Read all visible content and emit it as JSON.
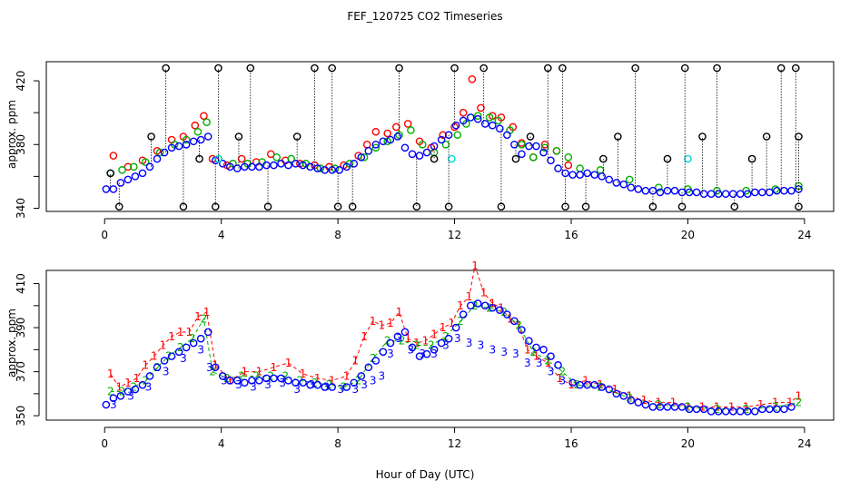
{
  "figure": {
    "title": "FEF_120725  CO2 Timeseries",
    "xlabel": "Hour of Day (UTC)"
  },
  "chart_data": [
    {
      "type": "scatter",
      "ylabel": "approx. ppm",
      "xlim": [
        -2,
        25
      ],
      "ylim": [
        338,
        432
      ],
      "xticks": [
        0,
        4,
        8,
        12,
        16,
        20,
        24
      ],
      "yticks": [
        340,
        380,
        420
      ],
      "yticks_minor_unlabeled": [
        360,
        400
      ],
      "marker": "circle",
      "series": [
        {
          "name": "red",
          "color": "#ff0000",
          "x": [
            0.3,
            0.8,
            1.3,
            1.8,
            2.3,
            2.7,
            3.1,
            3.4,
            3.7,
            4.2,
            4.7,
            5.2,
            5.7,
            6.2,
            6.7,
            7.2,
            7.7,
            8.2,
            8.7,
            9.0,
            9.3,
            9.7,
            10.0,
            10.4,
            10.8,
            11.2,
            11.6,
            12.0,
            12.3,
            12.6,
            12.9,
            13.3,
            13.6,
            14.0,
            14.3,
            14.7,
            15.1,
            15.5,
            15.9
          ],
          "y": [
            373,
            366,
            370,
            376,
            383,
            385,
            392,
            398,
            371,
            367,
            371,
            369,
            374,
            370,
            368,
            367,
            366,
            367,
            373,
            380,
            388,
            387,
            391,
            393,
            382,
            378,
            386,
            391,
            400,
            421,
            403,
            398,
            397,
            391,
            381,
            372,
            380,
            376,
            367
          ]
        },
        {
          "name": "green",
          "color": "#00b000",
          "x": [
            0.2,
            0.6,
            1.0,
            1.4,
            1.9,
            2.4,
            2.8,
            3.2,
            3.5,
            3.9,
            4.4,
            4.9,
            5.4,
            5.9,
            6.4,
            6.9,
            7.4,
            7.9,
            8.4,
            8.9,
            9.3,
            9.7,
            10.1,
            10.5,
            10.9,
            11.3,
            11.7,
            12.1,
            12.4,
            12.8,
            13.2,
            13.5,
            13.9,
            14.3,
            14.7,
            15.1,
            15.5,
            15.9,
            16.3,
            17.0,
            18.0,
            19.0,
            20.0,
            21.0,
            22.0,
            23.0,
            23.8
          ],
          "y": [
            362,
            364,
            366,
            369,
            375,
            380,
            383,
            388,
            394,
            371,
            368,
            368,
            369,
            372,
            371,
            368,
            365,
            365,
            368,
            372,
            378,
            382,
            386,
            389,
            380,
            375,
            380,
            386,
            393,
            398,
            397,
            395,
            389,
            380,
            372,
            378,
            376,
            372,
            365,
            364,
            358,
            353,
            352,
            351,
            351,
            352,
            354
          ]
        },
        {
          "name": "blue",
          "color": "#0000ff",
          "x": [
            0.05,
            0.3,
            0.55,
            0.8,
            1.05,
            1.3,
            1.55,
            1.8,
            2.05,
            2.3,
            2.55,
            2.8,
            3.05,
            3.3,
            3.55,
            3.8,
            4.05,
            4.3,
            4.55,
            4.8,
            5.05,
            5.3,
            5.55,
            5.8,
            6.05,
            6.3,
            6.55,
            6.8,
            7.05,
            7.3,
            7.55,
            7.8,
            8.05,
            8.3,
            8.55,
            8.8,
            9.05,
            9.3,
            9.55,
            9.8,
            10.05,
            10.3,
            10.55,
            10.8,
            11.05,
            11.3,
            11.55,
            11.8,
            12.05,
            12.3,
            12.55,
            12.8,
            13.05,
            13.3,
            13.55,
            13.8,
            14.05,
            14.3,
            14.55,
            14.8,
            15.05,
            15.3,
            15.55,
            15.8,
            16.05,
            16.3,
            16.55,
            16.8,
            17.05,
            17.3,
            17.55,
            17.8,
            18.05,
            18.3,
            18.55,
            18.8,
            19.05,
            19.3,
            19.55,
            19.8,
            20.05,
            20.3,
            20.55,
            20.8,
            21.05,
            21.3,
            21.55,
            21.8,
            22.05,
            22.3,
            22.55,
            22.8,
            23.05,
            23.3,
            23.55,
            23.8
          ],
          "y": [
            352,
            352,
            356,
            358,
            360,
            362,
            366,
            371,
            375,
            378,
            379,
            380,
            382,
            383,
            385,
            370,
            368,
            366,
            365,
            366,
            366,
            366,
            367,
            367,
            368,
            367,
            368,
            367,
            366,
            365,
            364,
            364,
            364,
            366,
            368,
            372,
            376,
            380,
            382,
            383,
            385,
            378,
            374,
            373,
            375,
            379,
            383,
            386,
            392,
            395,
            397,
            396,
            393,
            392,
            390,
            386,
            380,
            374,
            379,
            379,
            375,
            370,
            365,
            362,
            361,
            361,
            362,
            361,
            360,
            358,
            356,
            355,
            353,
            352,
            351,
            351,
            350,
            351,
            351,
            350,
            350,
            350,
            349,
            349,
            349,
            349,
            349,
            349,
            349,
            350,
            350,
            350,
            351,
            351,
            351,
            352
          ]
        },
        {
          "name": "cyan",
          "color": "#00d8d8",
          "x": [
            3.9,
            11.9,
            20.0
          ],
          "y": [
            371,
            371,
            371
          ]
        },
        {
          "name": "black",
          "color": "#000000",
          "x": [
            0.2,
            0.5,
            1.6,
            2.1,
            2.7,
            3.25,
            3.8,
            3.9,
            4.6,
            5.0,
            5.6,
            6.6,
            7.2,
            7.8,
            8.0,
            8.5,
            10.1,
            10.7,
            11.3,
            11.8,
            12.0,
            13.0,
            13.6,
            14.1,
            14.6,
            15.2,
            15.7,
            15.8,
            16.5,
            17.1,
            17.6,
            18.2,
            18.8,
            19.3,
            19.8,
            19.9,
            20.5,
            21.0,
            21.6,
            22.2,
            22.7,
            23.2,
            23.7,
            23.8,
            23.8
          ],
          "y": [
            362,
            341,
            385,
            428,
            341,
            371,
            341,
            428,
            385,
            428,
            341,
            385,
            428,
            428,
            341,
            341,
            428,
            341,
            371,
            341,
            428,
            428,
            341,
            371,
            385,
            428,
            428,
            341,
            341,
            371,
            385,
            428,
            341,
            371,
            341,
            428,
            385,
            428,
            341,
            371,
            385,
            428,
            428,
            341,
            385
          ]
        }
      ]
    },
    {
      "type": "scatter",
      "ylabel": "approx. ppm",
      "xlim": [
        -2,
        25
      ],
      "ylim": [
        348,
        416
      ],
      "xticks": [
        0,
        4,
        8,
        12,
        16,
        20,
        24
      ],
      "yticks": [
        350,
        370,
        390,
        410
      ],
      "yticks_minor_unlabeled": [
        360,
        380,
        400
      ],
      "series": [
        {
          "name": "1",
          "color": "#ff0000",
          "marker": "1",
          "x": [
            0.2,
            0.5,
            0.8,
            1.1,
            1.4,
            1.7,
            2.0,
            2.3,
            2.6,
            2.9,
            3.2,
            3.5,
            3.8,
            4.3,
            4.8,
            5.3,
            5.8,
            6.3,
            6.8,
            7.3,
            7.8,
            8.3,
            8.6,
            8.9,
            9.2,
            9.5,
            9.8,
            10.1,
            10.4,
            10.7,
            11.0,
            11.3,
            11.6,
            11.9,
            12.2,
            12.5,
            12.7,
            13.0,
            13.3,
            13.6,
            13.9,
            14.2,
            14.5,
            14.8,
            15.2,
            15.6,
            16.0,
            16.5,
            17.0,
            17.5,
            18.0,
            18.5,
            19.0,
            19.5,
            20.0,
            20.5,
            21.0,
            21.5,
            22.0,
            22.5,
            23.0,
            23.5,
            23.8
          ],
          "y": [
            369,
            363,
            365,
            367,
            373,
            377,
            382,
            386,
            388,
            388,
            395,
            397,
            373,
            366,
            370,
            370,
            372,
            374,
            369,
            367,
            366,
            368,
            375,
            386,
            393,
            391,
            392,
            397,
            385,
            383,
            384,
            387,
            390,
            392,
            400,
            404,
            418,
            406,
            401,
            399,
            394,
            391,
            380,
            377,
            374,
            367,
            364,
            366,
            364,
            362,
            359,
            357,
            356,
            356,
            354,
            354,
            354,
            354,
            354,
            355,
            356,
            356,
            359
          ]
        },
        {
          "name": "2",
          "color": "#00b000",
          "marker": "2",
          "x": [
            0.2,
            0.6,
            1.0,
            1.4,
            1.8,
            2.2,
            2.6,
            3.0,
            3.4,
            3.7,
            4.2,
            4.7,
            5.2,
            5.7,
            6.2,
            6.7,
            7.2,
            7.7,
            8.2,
            8.7,
            9.2,
            9.7,
            10.2,
            10.7,
            11.2,
            11.7,
            12.2,
            12.7,
            13.2,
            13.7,
            14.2,
            14.7,
            15.2,
            15.7,
            16.2,
            17.0,
            18.0,
            19.0,
            20.0,
            21.0,
            22.0,
            23.0,
            23.8
          ],
          "y": [
            361,
            361,
            363,
            366,
            372,
            377,
            381,
            385,
            394,
            370,
            367,
            368,
            368,
            368,
            368,
            366,
            365,
            364,
            363,
            366,
            376,
            384,
            384,
            382,
            382,
            386,
            393,
            400,
            399,
            397,
            391,
            379,
            375,
            370,
            364,
            363,
            358,
            355,
            354,
            353,
            353,
            354,
            356
          ]
        },
        {
          "name": "3",
          "color": "#0000ff",
          "marker": "3",
          "x": [
            0.3,
            0.9,
            1.5,
            2.1,
            2.7,
            3.3,
            3.6,
            4.1,
            4.6,
            5.1,
            5.6,
            6.1,
            6.6,
            7.1,
            7.6,
            8.1,
            8.6,
            8.9,
            9.2,
            9.5,
            9.8,
            10.1,
            10.5,
            10.9,
            11.3,
            11.7,
            12.1,
            12.5,
            12.9,
            13.3,
            13.7,
            14.1,
            14.5,
            14.9,
            15.3,
            15.7
          ],
          "y": [
            355,
            359,
            363,
            370,
            376,
            380,
            372,
            366,
            364,
            363,
            364,
            365,
            362,
            364,
            363,
            362,
            362,
            364,
            366,
            368,
            378,
            385,
            380,
            378,
            378,
            382,
            385,
            383,
            382,
            380,
            379,
            378,
            374,
            374,
            370,
            366
          ]
        },
        {
          "name": "o-blue",
          "color": "#0000ff",
          "marker": "circle",
          "x": [
            0.05,
            0.3,
            0.55,
            0.8,
            1.05,
            1.3,
            1.55,
            1.8,
            2.05,
            2.3,
            2.55,
            2.8,
            3.05,
            3.3,
            3.55,
            3.8,
            4.05,
            4.3,
            4.55,
            4.8,
            5.05,
            5.3,
            5.55,
            5.8,
            6.05,
            6.3,
            6.55,
            6.8,
            7.05,
            7.3,
            7.55,
            7.8,
            8.3,
            8.55,
            8.8,
            9.05,
            9.3,
            9.55,
            9.8,
            10.05,
            10.3,
            10.55,
            10.8,
            11.05,
            11.3,
            11.55,
            11.8,
            12.05,
            12.3,
            12.55,
            12.8,
            13.05,
            13.3,
            13.55,
            13.8,
            14.05,
            14.3,
            14.55,
            14.8,
            15.05,
            15.3,
            15.55,
            16.05,
            16.3,
            16.55,
            16.8,
            17.05,
            17.3,
            17.55,
            17.8,
            18.05,
            18.3,
            18.55,
            18.8,
            19.05,
            19.3,
            19.55,
            19.8,
            20.05,
            20.3,
            20.55,
            20.8,
            21.05,
            21.3,
            21.55,
            21.8,
            22.05,
            22.3,
            22.55,
            22.8,
            23.05,
            23.3,
            23.55
          ],
          "y": [
            355,
            358,
            359,
            361,
            362,
            364,
            368,
            372,
            375,
            377,
            379,
            381,
            383,
            385,
            388,
            372,
            368,
            366,
            366,
            365,
            366,
            366,
            367,
            367,
            367,
            366,
            365,
            365,
            364,
            364,
            363,
            363,
            363,
            365,
            368,
            372,
            375,
            379,
            383,
            386,
            388,
            381,
            377,
            378,
            380,
            383,
            385,
            390,
            396,
            400,
            401,
            400,
            399,
            398,
            396,
            393,
            389,
            384,
            381,
            380,
            377,
            373,
            365,
            364,
            364,
            364,
            363,
            362,
            360,
            359,
            357,
            356,
            355,
            354,
            354,
            354,
            354,
            354,
            353,
            353,
            353,
            352,
            352,
            352,
            352,
            352,
            352,
            352,
            353,
            353,
            353,
            353,
            354
          ]
        }
      ]
    }
  ]
}
